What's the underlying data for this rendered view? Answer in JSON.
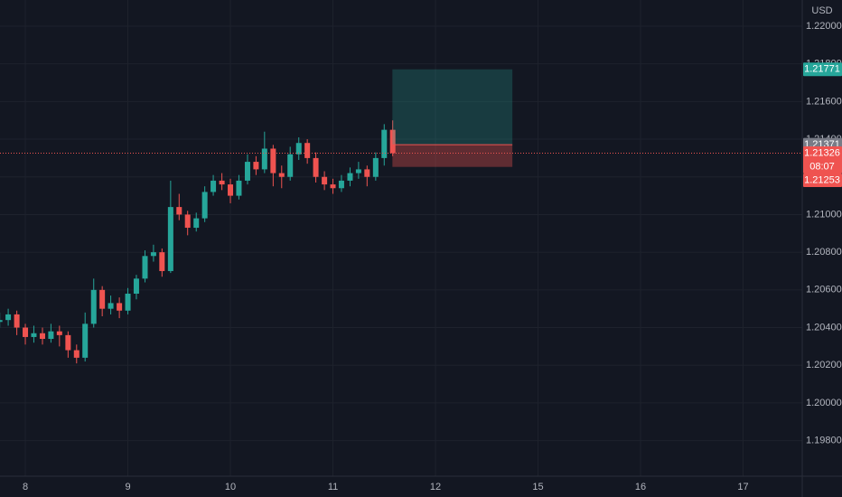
{
  "chart_data": {
    "type": "candlestick",
    "currency": "USD",
    "grid": true,
    "up_color": "#26a69a",
    "down_color": "#ef5350",
    "x": [
      -0.25,
      -0.167,
      -0.083,
      0,
      0.083,
      0.167,
      0.25,
      0.333,
      0.417,
      0.5,
      0.583,
      0.667,
      0.75,
      0.833,
      0.917,
      1,
      1.083,
      1.167,
      1.25,
      1.333,
      1.417,
      1.5,
      1.583,
      1.667,
      1.75,
      1.833,
      1.917,
      2,
      2.083,
      2.167,
      2.25,
      2.333,
      2.417,
      2.5,
      2.583,
      2.667,
      2.75,
      2.833,
      2.917,
      3,
      3.083,
      3.167,
      3.25,
      3.333,
      3.417,
      3.5,
      3.583
    ],
    "open": [
      1.2043,
      1.2044,
      1.2047,
      1.204,
      1.2035,
      1.2037,
      1.2034,
      1.2038,
      1.2036,
      1.2028,
      1.2024,
      1.2042,
      1.206,
      1.205,
      1.2053,
      1.2049,
      1.2058,
      1.2066,
      1.2078,
      1.208,
      1.207,
      1.2104,
      1.21,
      1.2093,
      1.2098,
      1.2112,
      1.2118,
      1.2116,
      1.211,
      1.2118,
      1.2128,
      1.2124,
      1.2135,
      1.2122,
      1.212,
      1.2132,
      1.2138,
      1.213,
      1.212,
      1.2116,
      1.2114,
      1.2118,
      1.2122,
      1.2124,
      1.212,
      1.213,
      1.2145
    ],
    "high": [
      1.2048,
      1.205,
      1.2049,
      1.2042,
      1.2041,
      1.204,
      1.2042,
      1.2041,
      1.2038,
      1.2031,
      1.2048,
      1.2066,
      1.2062,
      1.2057,
      1.2056,
      1.2061,
      1.2068,
      1.2081,
      1.2084,
      1.2082,
      1.2118,
      1.2111,
      1.2102,
      1.2101,
      1.2115,
      1.2121,
      1.2122,
      1.2119,
      1.2121,
      1.2132,
      1.2131,
      1.2144,
      1.2137,
      1.2126,
      1.2136,
      1.2141,
      1.214,
      1.2133,
      1.2123,
      1.2119,
      1.2121,
      1.2125,
      1.2128,
      1.2126,
      1.2133,
      1.2148,
      1.215
    ],
    "low": [
      1.204,
      1.2041,
      1.2036,
      1.2031,
      1.2032,
      1.2031,
      1.2032,
      1.203,
      1.2024,
      1.2021,
      1.2022,
      1.204,
      1.2046,
      1.2047,
      1.2045,
      1.2047,
      1.2055,
      1.2064,
      1.2075,
      1.2067,
      1.2069,
      1.2097,
      1.2089,
      1.2091,
      1.2096,
      1.211,
      1.2113,
      1.2106,
      1.2108,
      1.2116,
      1.2121,
      1.2122,
      1.2115,
      1.2114,
      1.2118,
      1.2129,
      1.2127,
      1.2117,
      1.2113,
      1.2111,
      1.2112,
      1.2115,
      1.2119,
      1.2115,
      1.2118,
      1.2126,
      1.2131
    ],
    "close": [
      1.2044,
      1.2047,
      1.204,
      1.2035,
      1.2037,
      1.2034,
      1.2038,
      1.2036,
      1.2028,
      1.2024,
      1.2042,
      1.206,
      1.205,
      1.2053,
      1.2049,
      1.2058,
      1.2066,
      1.2078,
      1.208,
      1.207,
      1.2104,
      1.21,
      1.2093,
      1.2098,
      1.2112,
      1.2118,
      1.2116,
      1.211,
      1.2118,
      1.2128,
      1.2124,
      1.2135,
      1.2122,
      1.212,
      1.2132,
      1.2138,
      1.213,
      1.212,
      1.2116,
      1.2114,
      1.2118,
      1.2122,
      1.2124,
      1.212,
      1.213,
      1.2145,
      1.21326
    ],
    "last_price": 1.21326,
    "countdown": "08:07",
    "position": {
      "x_range": [
        3.58,
        4.75
      ],
      "entry": 1.21371,
      "target": 1.21771,
      "stop": 1.21253,
      "profit_color": "#26a69a",
      "loss_color": "#ef5350",
      "entry_color": "#787b86"
    },
    "xlim": [
      -0.247,
      7.577
    ],
    "ylim": [
      1.19611,
      1.22139
    ],
    "xticks": [
      {
        "value": 0,
        "label": "8"
      },
      {
        "value": 1,
        "label": "9"
      },
      {
        "value": 2,
        "label": "10"
      },
      {
        "value": 3,
        "label": "11"
      },
      {
        "value": 4,
        "label": "12"
      },
      {
        "value": 5,
        "label": "15"
      },
      {
        "value": 6,
        "label": "16"
      },
      {
        "value": 7,
        "label": "17"
      }
    ],
    "yticks": [
      {
        "value": 1.198,
        "label": "1.19800"
      },
      {
        "value": 1.2,
        "label": "1.20000"
      },
      {
        "value": 1.202,
        "label": "1.20200"
      },
      {
        "value": 1.204,
        "label": "1.20400"
      },
      {
        "value": 1.206,
        "label": "1.20600"
      },
      {
        "value": 1.208,
        "label": "1.20800"
      },
      {
        "value": 1.21,
        "label": "1.21000"
      },
      {
        "value": 1.212,
        "label": "1.21200"
      },
      {
        "value": 1.214,
        "label": "1.21400"
      },
      {
        "value": 1.216,
        "label": "1.21600"
      },
      {
        "value": 1.218,
        "label": "1.21800"
      },
      {
        "value": 1.22,
        "label": "1.22000"
      }
    ]
  }
}
